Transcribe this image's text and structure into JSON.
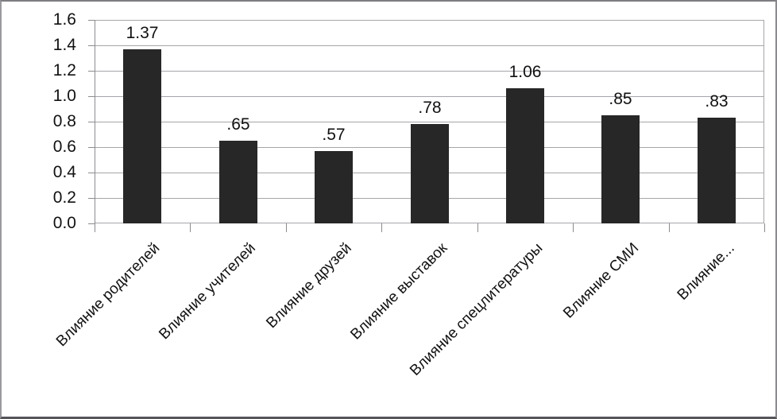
{
  "chart_data": {
    "type": "bar",
    "categories": [
      "Влияние родителей",
      "Влияние учителей",
      "Влияние друзей",
      "Влияние выставок",
      "Влияние спецлитературы",
      "Влияние СМИ",
      "Влияние..."
    ],
    "values": [
      1.37,
      0.65,
      0.57,
      0.78,
      1.06,
      0.85,
      0.83
    ],
    "data_labels": [
      "1.37",
      ".65",
      ".57",
      ".78",
      "1.06",
      ".85",
      ".83"
    ],
    "y_tick_labels": [
      "1.6",
      "1.4",
      "1.2",
      "1.0",
      "0.8",
      "0.6",
      "0.4",
      "0.2",
      "0.0"
    ],
    "ylim": [
      0,
      1.6
    ],
    "grid": true,
    "legend": "none",
    "bar_color": "#272727",
    "grid_color": "#a6a6aa",
    "axis_color": "#8c8c90",
    "text_color": "#111111"
  }
}
